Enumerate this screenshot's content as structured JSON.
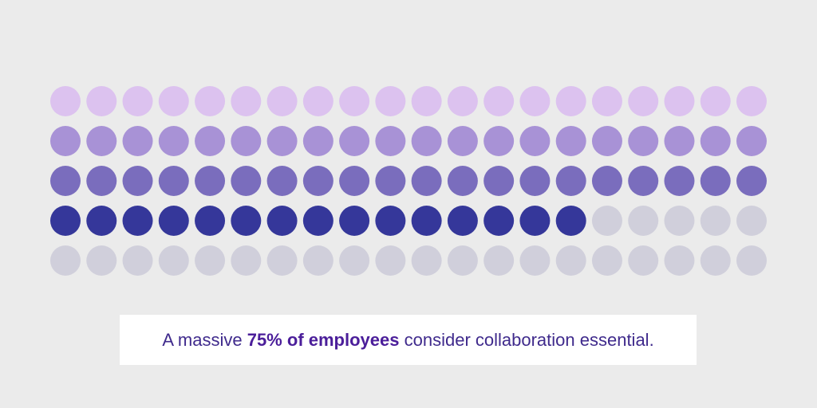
{
  "chart_data": {
    "type": "waffle",
    "values": [
      75
    ],
    "value_labels": [
      "75%"
    ],
    "caption": {
      "before": "A massive",
      "highlight": "of employees",
      "after": "consider collaboration essential."
    },
    "colors": [
      "#dcc2ef",
      "#a892d6",
      "#7a6dbd",
      "#35379a"
    ],
    "empty_color": "#d0cfdb"
  }
}
